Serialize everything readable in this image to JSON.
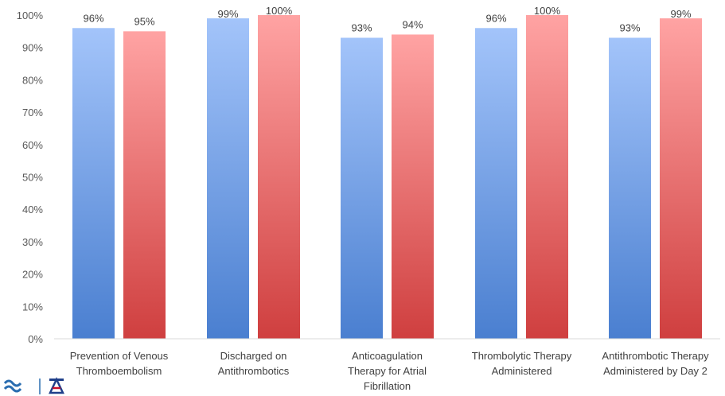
{
  "chart_data": {
    "type": "bar",
    "categories": [
      [
        "Prevention of Venous",
        "Thromboembolism"
      ],
      [
        "Discharged on",
        "Antithrombotics"
      ],
      [
        "Anticoagulation",
        "Therapy for Atrial",
        "Fibrillation"
      ],
      [
        "Thrombolytic Therapy",
        "Administered"
      ],
      [
        "Antithrombotic Therapy",
        "Administered by Day 2"
      ]
    ],
    "series": [
      {
        "values": [
          96,
          99,
          93,
          96,
          93
        ],
        "labels": [
          "96%",
          "99%",
          "93%",
          "96%",
          "93%"
        ],
        "color_top": "#a3c4fa",
        "color_bottom": "#4a7fd0"
      },
      {
        "values": [
          95,
          100,
          94,
          100,
          99
        ],
        "labels": [
          "95%",
          "100%",
          "94%",
          "100%",
          "99%"
        ],
        "color_top": "#ffa3a3",
        "color_bottom": "#cf3f3f"
      }
    ],
    "yticks": [
      "0%",
      "10%",
      "20%",
      "30%",
      "40%",
      "50%",
      "60%",
      "70%",
      "80%",
      "90%",
      "100%"
    ],
    "ylim": [
      0,
      100
    ],
    "grid": false,
    "legend": "none"
  }
}
